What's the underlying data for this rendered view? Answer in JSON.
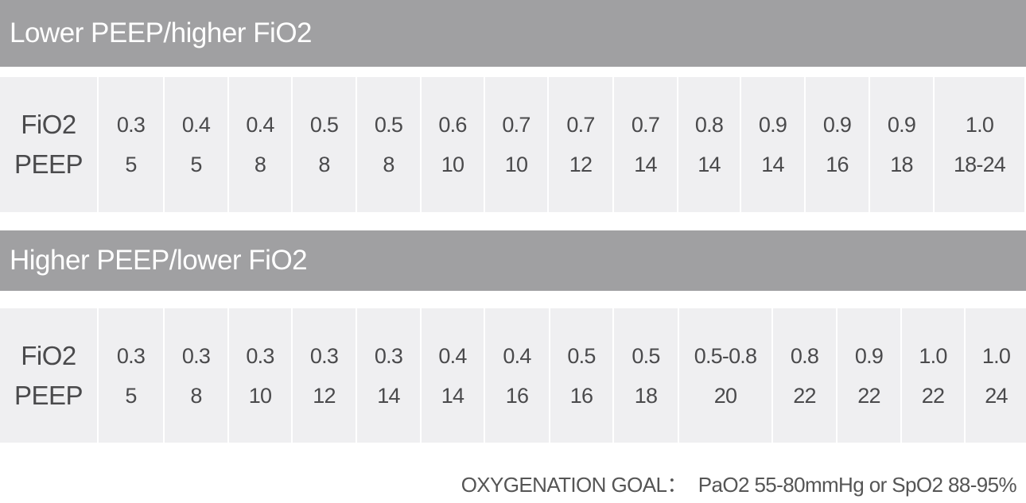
{
  "tables": [
    {
      "title": "Lower PEEP/higher FiO2",
      "row_labels": [
        "FiO2",
        "PEEP"
      ],
      "fio2": [
        "0.3",
        "0.4",
        "0.4",
        "0.5",
        "0.5",
        "0.6",
        "0.7",
        "0.7",
        "0.7",
        "0.8",
        "0.9",
        "0.9",
        "0.9",
        "1.0"
      ],
      "peep": [
        "5",
        "5",
        "8",
        "8",
        "8",
        "10",
        "10",
        "12",
        "14",
        "14",
        "14",
        "16",
        "18",
        "18-24"
      ]
    },
    {
      "title": "Higher PEEP/lower FiO2",
      "row_labels": [
        "FiO2",
        "PEEP"
      ],
      "fio2": [
        "0.3",
        "0.3",
        "0.3",
        "0.3",
        "0.3",
        "0.4",
        "0.4",
        "0.5",
        "0.5",
        "0.5-0.8",
        "0.8",
        "0.9",
        "1.0",
        "1.0"
      ],
      "peep": [
        "5",
        "8",
        "10",
        "12",
        "14",
        "14",
        "16",
        "16",
        "18",
        "20",
        "22",
        "22",
        "22",
        "24"
      ]
    }
  ],
  "footer": {
    "label": "OXYGENATION GOAL：",
    "value": "PaO2 55-80mmHg or SpO2 88-95%"
  },
  "colors": {
    "header_bg": "#a0a0a2",
    "cell_bg": "#efeff1",
    "text": "#4a4a4c"
  }
}
